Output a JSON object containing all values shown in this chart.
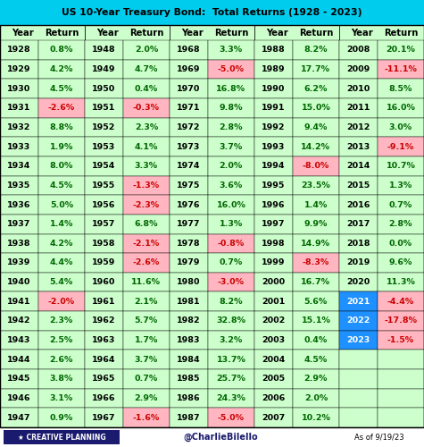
{
  "title": "US 10-Year Treasury Bond:  Total Returns (1928 - 2023)",
  "title_bg": "#00CCEE",
  "header_bg": "#CCFFCC",
  "footer_text1": "CREATIVE PLANNING",
  "footer_text2": "@CharlieBilello",
  "footer_text3": "As of 9/19/23",
  "columns": [
    [
      [
        1928,
        0.8
      ],
      [
        1929,
        4.2
      ],
      [
        1930,
        4.5
      ],
      [
        1931,
        -2.6
      ],
      [
        1932,
        8.8
      ],
      [
        1933,
        1.9
      ],
      [
        1934,
        8.0
      ],
      [
        1935,
        4.5
      ],
      [
        1936,
        5.0
      ],
      [
        1937,
        1.4
      ],
      [
        1938,
        4.2
      ],
      [
        1939,
        4.4
      ],
      [
        1940,
        5.4
      ],
      [
        1941,
        -2.0
      ],
      [
        1942,
        2.3
      ],
      [
        1943,
        2.5
      ],
      [
        1944,
        2.6
      ],
      [
        1945,
        3.8
      ],
      [
        1946,
        3.1
      ],
      [
        1947,
        0.9
      ]
    ],
    [
      [
        1948,
        2.0
      ],
      [
        1949,
        4.7
      ],
      [
        1950,
        0.4
      ],
      [
        1951,
        -0.3
      ],
      [
        1952,
        2.3
      ],
      [
        1953,
        4.1
      ],
      [
        1954,
        3.3
      ],
      [
        1955,
        -1.3
      ],
      [
        1956,
        -2.3
      ],
      [
        1957,
        6.8
      ],
      [
        1958,
        -2.1
      ],
      [
        1959,
        -2.6
      ],
      [
        1960,
        11.6
      ],
      [
        1961,
        2.1
      ],
      [
        1962,
        5.7
      ],
      [
        1963,
        1.7
      ],
      [
        1964,
        3.7
      ],
      [
        1965,
        0.7
      ],
      [
        1966,
        2.9
      ],
      [
        1967,
        -1.6
      ]
    ],
    [
      [
        1968,
        3.3
      ],
      [
        1969,
        -5.0
      ],
      [
        1970,
        16.8
      ],
      [
        1971,
        9.8
      ],
      [
        1972,
        2.8
      ],
      [
        1973,
        3.7
      ],
      [
        1974,
        2.0
      ],
      [
        1975,
        3.6
      ],
      [
        1976,
        16.0
      ],
      [
        1977,
        1.3
      ],
      [
        1978,
        -0.8
      ],
      [
        1979,
        0.7
      ],
      [
        1980,
        -3.0
      ],
      [
        1981,
        8.2
      ],
      [
        1982,
        32.8
      ],
      [
        1983,
        3.2
      ],
      [
        1984,
        13.7
      ],
      [
        1985,
        25.7
      ],
      [
        1986,
        24.3
      ],
      [
        1987,
        -5.0
      ]
    ],
    [
      [
        1988,
        8.2
      ],
      [
        1989,
        17.7
      ],
      [
        1990,
        6.2
      ],
      [
        1991,
        15.0
      ],
      [
        1992,
        9.4
      ],
      [
        1993,
        14.2
      ],
      [
        1994,
        -8.0
      ],
      [
        1995,
        23.5
      ],
      [
        1996,
        1.4
      ],
      [
        1997,
        9.9
      ],
      [
        1998,
        14.9
      ],
      [
        1999,
        -8.3
      ],
      [
        2000,
        16.7
      ],
      [
        2001,
        5.6
      ],
      [
        2002,
        15.1
      ],
      [
        2003,
        0.4
      ],
      [
        2004,
        4.5
      ],
      [
        2005,
        2.9
      ],
      [
        2006,
        2.0
      ],
      [
        2007,
        10.2
      ]
    ],
    [
      [
        2008,
        20.1
      ],
      [
        2009,
        -11.1
      ],
      [
        2010,
        8.5
      ],
      [
        2011,
        16.0
      ],
      [
        2012,
        3.0
      ],
      [
        2013,
        -9.1
      ],
      [
        2014,
        10.7
      ],
      [
        2015,
        1.3
      ],
      [
        2016,
        0.7
      ],
      [
        2017,
        2.8
      ],
      [
        2018,
        0.0
      ],
      [
        2019,
        9.6
      ],
      [
        2020,
        11.3
      ],
      [
        2021,
        -4.4
      ],
      [
        2022,
        -17.8
      ],
      [
        2023,
        -1.5
      ]
    ]
  ],
  "max_rows": 20,
  "special_years": [
    2021,
    2022,
    2023
  ],
  "special_year_bg": "#1E90FF",
  "positive_bg": "#CCFFCC",
  "negative_bg": "#FFB6C1",
  "positive_color": "#006600",
  "negative_color": "#CC0000",
  "year_bg": "#CCFFCC",
  "empty_bg": "#CCFFCC",
  "footer_logo_bg": "#1a1a6e",
  "footer_text_color": "#1a1a6e",
  "border_color": "#000000",
  "title_fontsize": 7.8,
  "header_fontsize": 7.2,
  "cell_fontsize": 6.8
}
